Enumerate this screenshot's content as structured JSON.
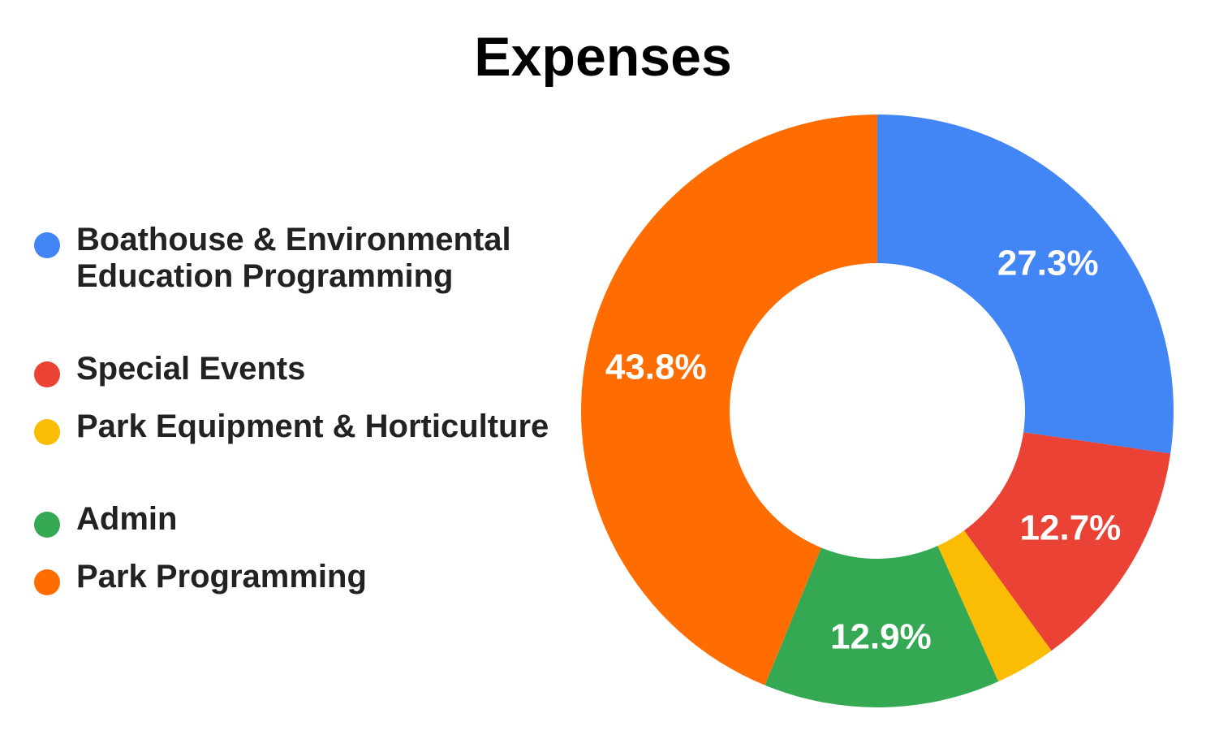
{
  "chart_data": {
    "type": "pie",
    "title": "Expenses",
    "donut": true,
    "legend_position": "left",
    "slices": [
      {
        "name": "Boathouse & Environmental Education Programming",
        "value": 27.3,
        "label": "27.3%",
        "color": "#4285F4"
      },
      {
        "name": "Special Events",
        "value": 12.7,
        "label": "12.7%",
        "color": "#EA4335"
      },
      {
        "name": "Park Equipment & Horticulture",
        "value": 3.3,
        "label": "",
        "color": "#FBBC04"
      },
      {
        "name": "Admin",
        "value": 12.9,
        "label": "12.9%",
        "color": "#34A853"
      },
      {
        "name": "Park Programming",
        "value": 43.8,
        "label": "43.8%",
        "color": "#FF6D01"
      }
    ]
  }
}
